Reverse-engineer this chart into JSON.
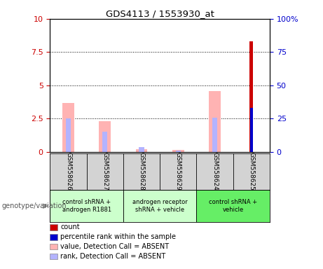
{
  "title": "GDS4113 / 1553930_at",
  "samples": [
    "GSM558626",
    "GSM558627",
    "GSM558628",
    "GSM558629",
    "GSM558624",
    "GSM558625"
  ],
  "pink_values": [
    3.7,
    2.3,
    0.2,
    0.15,
    4.6,
    0.0
  ],
  "blue_rank_values": [
    2.5,
    1.5,
    0.35,
    0.1,
    2.6,
    0.0
  ],
  "red_count_values": [
    0,
    0,
    0,
    0,
    0,
    8.3
  ],
  "blue_count_rank": [
    0,
    0,
    0,
    0,
    0,
    33
  ],
  "ylim_left": [
    0,
    10
  ],
  "ylim_right": [
    0,
    100
  ],
  "yticks_left": [
    0,
    2.5,
    5.0,
    7.5,
    10
  ],
  "yticks_right": [
    0,
    25,
    50,
    75,
    100
  ],
  "ytick_labels_left": [
    "0",
    "2.5",
    "5",
    "7.5",
    "10"
  ],
  "ytick_labels_right": [
    "0",
    "25",
    "50",
    "75",
    "100%"
  ],
  "left_tick_color": "#cc0000",
  "right_tick_color": "#0000cc",
  "pink_color": "#ffb3b3",
  "blue_color": "#b3b3ff",
  "red_color": "#cc0000",
  "dark_blue_color": "#0000cc",
  "group_configs": [
    {
      "xmin": 0,
      "xmax": 2,
      "color": "#ccffcc",
      "label": "control shRNA +\nandrogen R1881"
    },
    {
      "xmin": 2,
      "xmax": 4,
      "color": "#ccffcc",
      "label": "androgen receptor\nshRNA + vehicle"
    },
    {
      "xmin": 4,
      "xmax": 6,
      "color": "#66ee66",
      "label": "control shRNA +\nvehicle"
    }
  ],
  "sample_bg_color": "#d3d3d3",
  "legend_items": [
    {
      "color": "#cc0000",
      "label": "count"
    },
    {
      "color": "#0000cc",
      "label": "percentile rank within the sample"
    },
    {
      "color": "#ffb3b3",
      "label": "value, Detection Call = ABSENT"
    },
    {
      "color": "#b3b3ff",
      "label": "rank, Detection Call = ABSENT"
    }
  ],
  "genotype_label": "genotype/variation"
}
